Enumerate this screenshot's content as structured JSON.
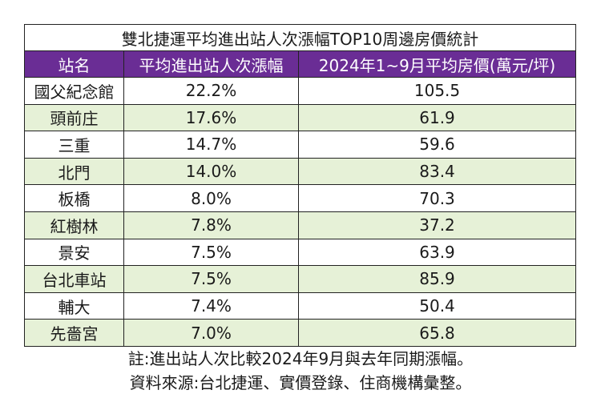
{
  "chart_data": {
    "type": "table",
    "title": "雙北捷運平均進出站人次漲幅TOP10周邊房價統計",
    "columns": [
      "站名",
      "平均進出站人次漲幅",
      "2024年1~9月平均房價(萬元/坪)"
    ],
    "rows": [
      [
        "國父紀念館",
        "22.2%",
        "105.5"
      ],
      [
        "頭前庄",
        "17.6%",
        "61.9"
      ],
      [
        "三重",
        "14.7%",
        "59.6"
      ],
      [
        "北門",
        "14.0%",
        "83.4"
      ],
      [
        "板橋",
        "8.0%",
        "70.3"
      ],
      [
        "紅樹林",
        "7.8%",
        "37.2"
      ],
      [
        "景安",
        "7.5%",
        "63.9"
      ],
      [
        "台北車站",
        "7.5%",
        "85.9"
      ],
      [
        "輔大",
        "7.4%",
        "50.4"
      ],
      [
        "先嗇宮",
        "7.0%",
        "65.8"
      ]
    ]
  },
  "notes": {
    "note": "註:進出站人次比較2024年9月與去年同期漲幅。",
    "source": "資料來源:台北捷運、實價登錄、住商機構彙整。"
  },
  "colors": {
    "header_bg": "#6a2d95",
    "header_text": "#ffffff",
    "alt_row_bg": "#e6f1d7"
  }
}
